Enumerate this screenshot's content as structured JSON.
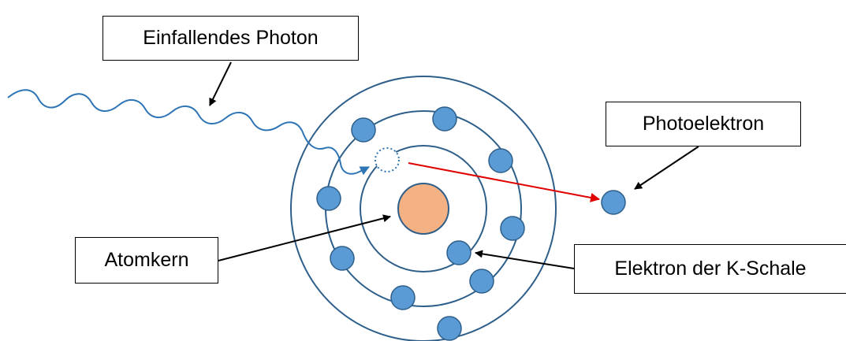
{
  "labels": {
    "incoming_photon": "Einfallendes Photon",
    "photoelectron": "Photoelektron",
    "nucleus": "Atomkern",
    "k_shell_electron": "Elektron der K-Schale"
  },
  "colors": {
    "shell_stroke": "#2E5F8A",
    "electron_fill": "#5B9BD5",
    "electron_stroke": "#2E5F8A",
    "nucleus_fill": "#F4B183",
    "nucleus_stroke": "#2E5F8A",
    "photon_wave": "#2E75B6",
    "photoelectron_path": "#E00000",
    "pointer_arrow": "#000000"
  },
  "icons": {
    "vacancy": "dotted-circle-icon",
    "electron": "filled-circle-icon"
  }
}
